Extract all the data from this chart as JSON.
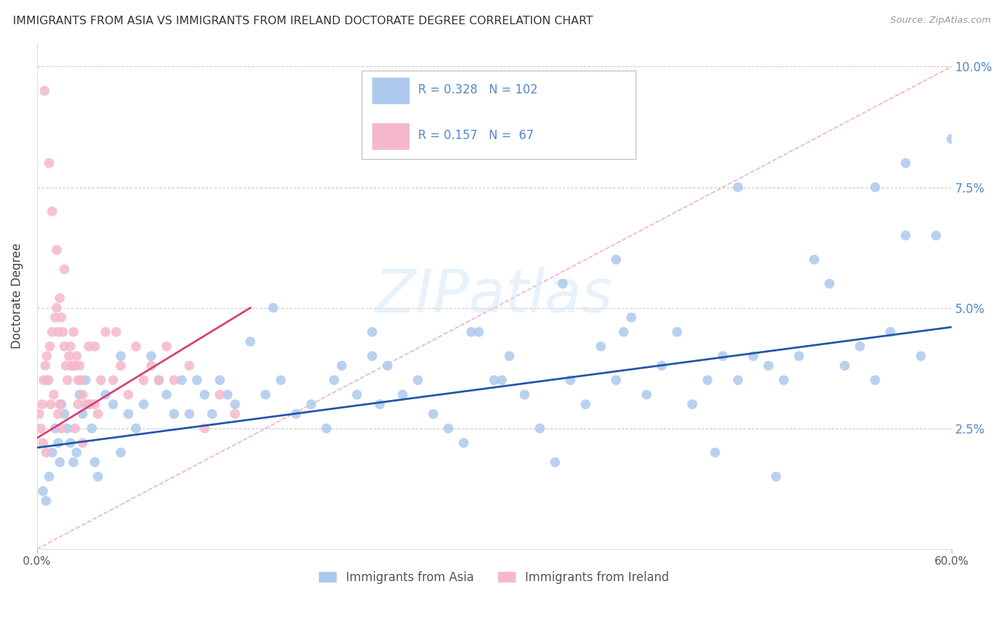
{
  "title": "IMMIGRANTS FROM ASIA VS IMMIGRANTS FROM IRELAND DOCTORATE DEGREE CORRELATION CHART",
  "source": "Source: ZipAtlas.com",
  "ylabel": "Doctorate Degree",
  "legend_labels": [
    "Immigrants from Asia",
    "Immigrants from Ireland"
  ],
  "blue_color": "#adc9ed",
  "blue_edge_color": "#adc9ed",
  "blue_line_color": "#2255aa",
  "pink_color": "#f5b8cb",
  "pink_edge_color": "#f5b8cb",
  "pink_line_color": "#d94070",
  "diag_line_color": "#f0b0c0",
  "background_color": "#ffffff",
  "grid_color": "#cccccc",
  "right_axis_color": "#5588cc",
  "R_blue": 0.328,
  "N_blue": 102,
  "R_pink": 0.157,
  "N_pink": 67,
  "xlim": [
    0.0,
    60.0
  ],
  "ylim": [
    0.0,
    10.5
  ],
  "y_plot_max": 10.0,
  "blue_trend_x": [
    0.0,
    60.0
  ],
  "blue_trend_y": [
    2.1,
    4.6
  ],
  "pink_trend_x": [
    0.0,
    14.0
  ],
  "pink_trend_y": [
    2.3,
    5.0
  ],
  "diag_line_x": [
    0.0,
    60.0
  ],
  "diag_line_y": [
    0.0,
    10.0
  ],
  "asia_x": [
    0.4,
    0.6,
    0.8,
    1.0,
    1.2,
    1.4,
    1.5,
    1.6,
    1.8,
    2.0,
    2.2,
    2.4,
    2.6,
    2.8,
    3.0,
    3.2,
    3.4,
    3.6,
    3.8,
    4.0,
    4.5,
    5.0,
    5.5,
    6.0,
    6.5,
    7.0,
    7.5,
    8.0,
    8.5,
    9.0,
    9.5,
    10.0,
    10.5,
    11.0,
    11.5,
    12.0,
    12.5,
    13.0,
    14.0,
    15.0,
    16.0,
    17.0,
    18.0,
    19.0,
    20.0,
    21.0,
    22.0,
    22.5,
    23.0,
    24.0,
    25.0,
    26.0,
    27.0,
    28.0,
    29.0,
    30.0,
    31.0,
    32.0,
    33.0,
    34.0,
    35.0,
    36.0,
    37.0,
    38.0,
    39.0,
    40.0,
    41.0,
    42.0,
    43.0,
    44.0,
    45.0,
    46.0,
    47.0,
    48.0,
    49.0,
    50.0,
    51.0,
    52.0,
    53.0,
    54.0,
    55.0,
    56.0,
    57.0,
    58.0,
    59.0,
    60.0,
    46.0,
    38.0,
    55.0,
    57.0,
    15.5,
    28.5,
    44.5,
    5.5,
    48.5,
    38.5,
    30.5,
    22.0,
    34.5,
    19.5
  ],
  "asia_y": [
    1.2,
    1.0,
    1.5,
    2.0,
    2.5,
    2.2,
    1.8,
    3.0,
    2.8,
    2.5,
    2.2,
    1.8,
    2.0,
    3.2,
    2.8,
    3.5,
    3.0,
    2.5,
    1.8,
    1.5,
    3.2,
    3.0,
    4.0,
    2.8,
    2.5,
    3.0,
    4.0,
    3.5,
    3.2,
    2.8,
    3.5,
    2.8,
    3.5,
    3.2,
    2.8,
    3.5,
    3.2,
    3.0,
    4.3,
    3.2,
    3.5,
    2.8,
    3.0,
    2.5,
    3.8,
    3.2,
    4.5,
    3.0,
    3.8,
    3.2,
    3.5,
    2.8,
    2.5,
    2.2,
    4.5,
    3.5,
    4.0,
    3.2,
    2.5,
    1.8,
    3.5,
    3.0,
    4.2,
    3.5,
    4.8,
    3.2,
    3.8,
    4.5,
    3.0,
    3.5,
    4.0,
    3.5,
    4.0,
    3.8,
    3.5,
    4.0,
    6.0,
    5.5,
    3.8,
    4.2,
    3.5,
    4.5,
    6.5,
    4.0,
    6.5,
    8.5,
    7.5,
    6.0,
    7.5,
    8.0,
    5.0,
    4.5,
    2.0,
    2.0,
    1.5,
    4.5,
    3.5,
    4.0,
    5.5,
    3.5
  ],
  "ireland_x": [
    0.15,
    0.25,
    0.35,
    0.45,
    0.55,
    0.65,
    0.75,
    0.85,
    0.9,
    1.0,
    1.1,
    1.2,
    1.3,
    1.4,
    1.5,
    1.6,
    1.7,
    1.8,
    1.9,
    2.0,
    2.1,
    2.2,
    2.3,
    2.4,
    2.5,
    2.6,
    2.7,
    2.8,
    2.9,
    3.0,
    3.2,
    3.4,
    3.5,
    3.8,
    4.0,
    4.5,
    5.0,
    5.5,
    6.0,
    6.5,
    7.0,
    7.5,
    8.0,
    8.5,
    9.0,
    10.0,
    11.0,
    12.0,
    13.0,
    1.0,
    0.5,
    0.8,
    1.5,
    2.5,
    3.0,
    4.2,
    5.2,
    1.8,
    1.3,
    0.7,
    2.3,
    1.4,
    3.8,
    0.6,
    1.6,
    2.7,
    0.4
  ],
  "ireland_y": [
    2.8,
    2.5,
    3.0,
    3.5,
    3.8,
    4.0,
    3.5,
    4.2,
    3.0,
    4.5,
    3.2,
    4.8,
    5.0,
    4.5,
    5.2,
    4.8,
    4.5,
    4.2,
    3.8,
    3.5,
    4.0,
    4.2,
    3.8,
    4.5,
    3.8,
    4.0,
    3.5,
    3.8,
    3.5,
    3.2,
    3.0,
    4.2,
    3.0,
    3.0,
    2.8,
    4.5,
    3.5,
    3.8,
    3.2,
    4.2,
    3.5,
    3.8,
    3.5,
    4.2,
    3.5,
    3.8,
    2.5,
    3.2,
    2.8,
    7.0,
    9.5,
    8.0,
    3.0,
    2.5,
    2.2,
    3.5,
    4.5,
    5.8,
    6.2,
    3.5,
    3.8,
    2.8,
    4.2,
    2.0,
    2.5,
    3.0,
    2.2
  ]
}
